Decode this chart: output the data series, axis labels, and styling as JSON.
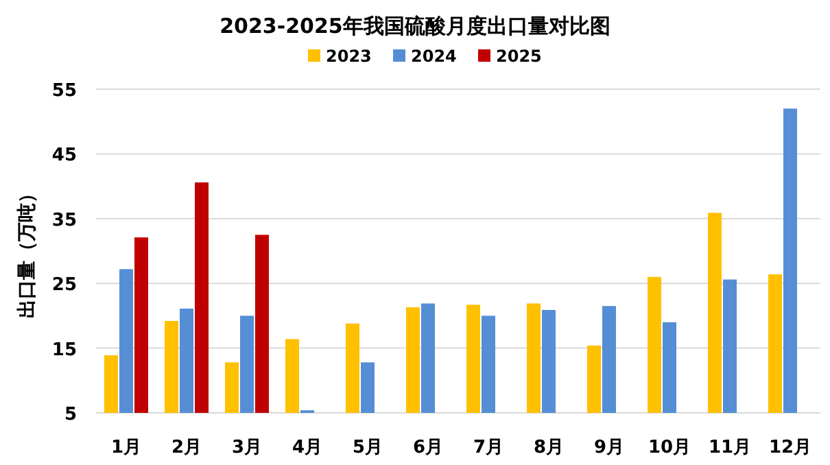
{
  "chart_data": {
    "type": "bar",
    "title": "2023-2025年我国硫酸月度出口量对比图",
    "ylabel": "出口量（万吨）",
    "categories": [
      "1月",
      "2月",
      "3月",
      "4月",
      "5月",
      "6月",
      "7月",
      "8月",
      "9月",
      "10月",
      "11月",
      "12月"
    ],
    "series": [
      {
        "name": "2023",
        "color": "#ffc000",
        "values": [
          13.9,
          19.2,
          12.8,
          16.4,
          18.8,
          21.3,
          21.7,
          21.9,
          15.4,
          26.0,
          35.9,
          26.4
        ]
      },
      {
        "name": "2024",
        "color": "#558ed5",
        "values": [
          27.2,
          21.1,
          20.0,
          5.4,
          12.8,
          21.9,
          20.0,
          20.9,
          21.5,
          19.0,
          25.6,
          52.0
        ]
      },
      {
        "name": "2025",
        "color": "#c00000",
        "values": [
          32.1,
          40.6,
          32.5,
          null,
          null,
          null,
          null,
          null,
          null,
          null,
          null,
          null
        ]
      }
    ],
    "ylim": [
      5,
      55
    ],
    "yticks": [
      5,
      15,
      25,
      35,
      45,
      55
    ],
    "grid": "y",
    "legend": "top"
  }
}
